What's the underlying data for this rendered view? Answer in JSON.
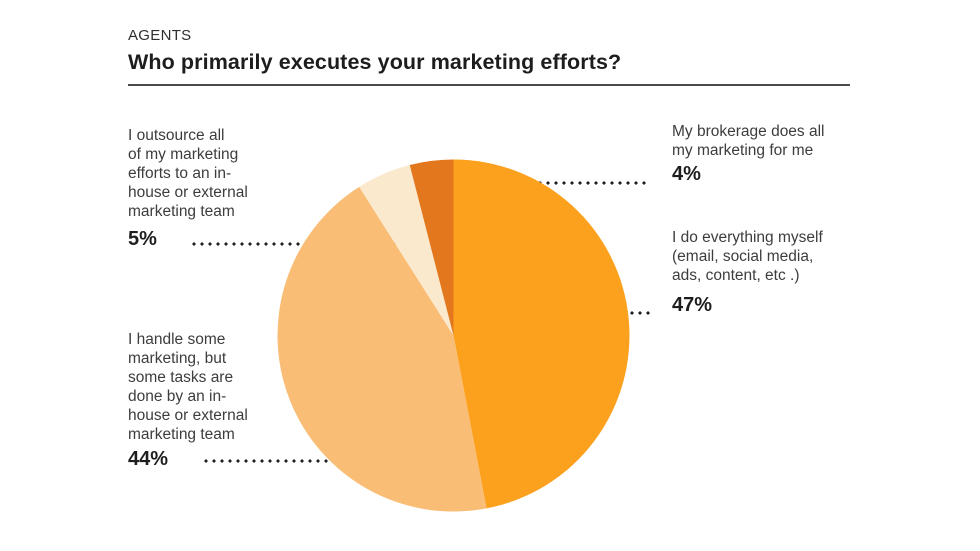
{
  "header": {
    "eyebrow": "AGENTS",
    "title": "Who primarily executes your marketing efforts?"
  },
  "chart_data": {
    "type": "pie",
    "title": "Who primarily executes your marketing efforts?",
    "start_angle_deg": 0,
    "direction": "clockwise",
    "legend_position": "callouts",
    "slices": [
      {
        "label": "I do everything myself (email, social media, ads, content, etc .)",
        "value": 47,
        "color": "#FCA11E"
      },
      {
        "label": "I handle some marketing, but some tasks are done by an in-house or external marketing team",
        "value": 44,
        "color": "#F9BD75"
      },
      {
        "label": "I outsource all of my marketing efforts to an in-house or external marketing team",
        "value": 5,
        "color": "#FBE9CE"
      },
      {
        "label": "My brokerage does all my marketing for me",
        "value": 4,
        "color": "#E2771D"
      }
    ]
  },
  "callouts": {
    "outsource": {
      "text": "I outsource all\nof my marketing\nefforts to an in-\nhouse or external\nmarketing team",
      "value": "5%"
    },
    "handle_some": {
      "text": "I handle some\nmarketing, but\nsome tasks are\ndone by an in-\nhouse or external\nmarketing team",
      "value": "44%"
    },
    "brokerage": {
      "text": "My brokerage does all\nmy marketing for me",
      "value": "4%"
    },
    "everything": {
      "text": "I do everything myself\n(email, social media,\nads, content, etc .)",
      "value": "47%"
    }
  }
}
